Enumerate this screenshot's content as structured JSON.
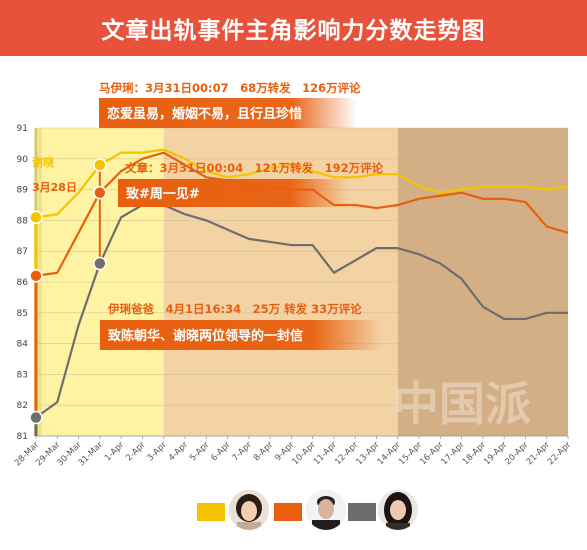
{
  "header": {
    "title": "文章出轨事件主角影响力分数走势图"
  },
  "colors": {
    "banner": "#e8523a",
    "yellow": "#f5c400",
    "orange": "#e85f0f",
    "gray": "#6d6d6d",
    "zone_yellow": "#fdf3a3",
    "zone_peach": "#f3d2a4",
    "zone_tan": "#d4ae84"
  },
  "legend": [
    {
      "color": "#f5c400",
      "icon": "avatar-woman-short-hair"
    },
    {
      "color": "#e85f0f",
      "icon": "avatar-man"
    },
    {
      "color": "#6d6d6d",
      "icon": "avatar-woman-long-hair"
    }
  ],
  "watermark": "中国派",
  "chart_data": {
    "type": "line",
    "title": "",
    "xlabel": "",
    "ylabel": "",
    "ylim": [
      81,
      91
    ],
    "yticks": [
      81,
      82,
      83,
      84,
      85,
      86,
      87,
      88,
      89,
      90,
      91
    ],
    "grid": "horizontal",
    "categories": [
      "28-Mar",
      "29-Mar",
      "30-Mar",
      "31-Mar",
      "1-Apr",
      "2-Apr",
      "3-Apr",
      "4-Apr",
      "5-Apr",
      "6-Apr",
      "7-Apr",
      "8-Apr",
      "9-Apr",
      "10-Apr",
      "11-Apr",
      "12-Apr",
      "13-Apr",
      "14-Apr",
      "15-Apr",
      "16-Apr",
      "17-Apr",
      "18-Apr",
      "19-Apr",
      "20-Apr",
      "21-Apr",
      "22-Apr"
    ],
    "series": [
      {
        "color": "#f5c400",
        "values": [
          88.1,
          88.2,
          88.9,
          89.8,
          90.2,
          90.2,
          90.3,
          90.0,
          89.6,
          89.4,
          89.5,
          89.7,
          89.8,
          89.6,
          89.4,
          89.4,
          89.5,
          89.5,
          89.1,
          88.9,
          89.0,
          89.1,
          89.1,
          89.1,
          89.0,
          89.1
        ]
      },
      {
        "color": "#e85f0f",
        "values": [
          86.2,
          86.3,
          87.6,
          88.9,
          89.6,
          90.0,
          90.2,
          89.8,
          89.4,
          89.3,
          89.1,
          89.1,
          89.0,
          89.0,
          88.5,
          88.5,
          88.4,
          88.5,
          88.7,
          88.8,
          88.9,
          88.7,
          88.7,
          88.6,
          87.8,
          87.6
        ]
      },
      {
        "color": "#6d6d6d",
        "values": [
          81.6,
          82.1,
          84.6,
          86.6,
          88.1,
          88.5,
          88.5,
          88.2,
          88.0,
          87.7,
          87.4,
          87.3,
          87.2,
          87.2,
          86.3,
          86.7,
          87.1,
          87.1,
          86.9,
          86.6,
          86.1,
          85.2,
          84.8,
          84.8,
          85.0,
          85.0
        ]
      }
    ],
    "zones": [
      {
        "from": "28-Mar",
        "to": "3-Apr",
        "color": "#fdf3a3"
      },
      {
        "from": "3-Apr",
        "to": "14-Apr",
        "color": "#f3d2a4"
      },
      {
        "from": "14-Apr",
        "to": "22-Apr",
        "color": "#d4ae84"
      }
    ],
    "annotations": [
      {
        "kind": "label",
        "series": 0,
        "category": "28-Mar",
        "text": "谢晓",
        "color": "#f5c400"
      },
      {
        "kind": "label",
        "series": 1,
        "category": "28-Mar",
        "text": "3月28日",
        "color": "#e85f0f"
      },
      {
        "kind": "callout",
        "series": 0,
        "category": "31-Mar",
        "header": "马伊琍：3月31日00:07　68万转发　126万评论",
        "body": "恋爱虽易，婚姻不易，且行且珍惜",
        "color": "#e85f0f"
      },
      {
        "kind": "callout",
        "series": 1,
        "category": "31-Mar",
        "header": "文章：3月31日00:04　121万转发　192万评论",
        "body": "致#周一见#",
        "color": "#e85f0f"
      },
      {
        "kind": "callout",
        "series": 2,
        "category": "31-Mar",
        "header": "伊琍爸爸　4月1日16:34　25万 转发 33万评论",
        "body": "致陈朝华、谢晓两位领导的一封信",
        "color": "#e85f0f"
      }
    ]
  }
}
